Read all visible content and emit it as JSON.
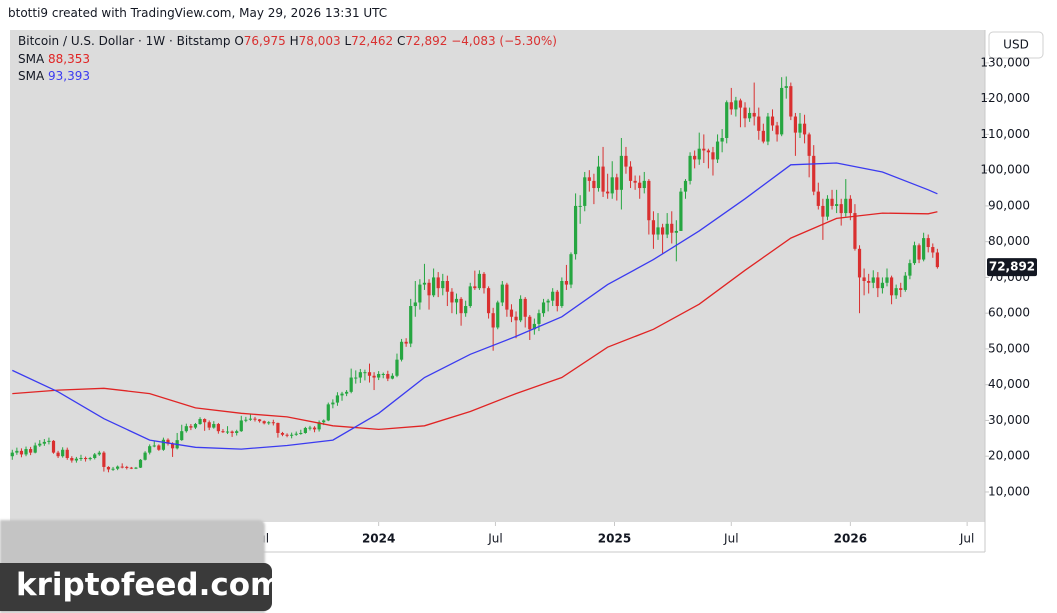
{
  "header": {
    "credit": "btotti9 created with TradingView.com, May 29, 2026 13:31 UTC"
  },
  "chart_data": {
    "type": "candlestick",
    "title": "Bitcoin / U.S. Dollar · 1W · Bitstamp",
    "quote": [
      {
        "key": "O",
        "value": "76,975"
      },
      {
        "key": "H",
        "value": "78,003"
      },
      {
        "key": "L",
        "value": "72,462"
      },
      {
        "key": "C",
        "value": "72,892"
      }
    ],
    "change": "−4,083 (−5.30%)",
    "currency": "USD",
    "price_label": "72,892",
    "up_color": "#26a641",
    "down_color": "#d93030",
    "grid": false,
    "xlim": [
      -0.5,
      212.4
    ],
    "xticks": [
      {
        "value": 54.5,
        "label": "Jul"
      },
      {
        "value": 80,
        "label": "2024"
      },
      {
        "value": 105.5,
        "label": "Jul"
      },
      {
        "value": 131.5,
        "label": "2025"
      },
      {
        "value": 157,
        "label": "Jul"
      },
      {
        "value": 183,
        "label": "2026"
      },
      {
        "value": 208.5,
        "label": "Jul"
      }
    ],
    "ylim": [
      1600,
      139200
    ],
    "yticks": [
      {
        "value": 10000,
        "label": "10,000"
      },
      {
        "value": 20000,
        "label": "20,000"
      },
      {
        "value": 30000,
        "label": "30,000"
      },
      {
        "value": 40000,
        "label": "40,000"
      },
      {
        "value": 50000,
        "label": "50,000"
      },
      {
        "value": 60000,
        "label": "60,000"
      },
      {
        "value": 70000,
        "label": "70,000"
      },
      {
        "value": 80000,
        "label": "80,000"
      },
      {
        "value": 90000,
        "label": "90,000"
      },
      {
        "value": 100000,
        "label": "100,000"
      },
      {
        "value": 110000,
        "label": "110,000"
      },
      {
        "value": 120000,
        "label": "120,000"
      },
      {
        "value": 130000,
        "label": "130,000"
      }
    ],
    "ohlc": [
      [
        20000,
        21800,
        19000,
        21000
      ],
      [
        21000,
        22400,
        20400,
        21500
      ],
      [
        21500,
        22200,
        19700,
        20500
      ],
      [
        20500,
        22700,
        20000,
        22000
      ],
      [
        22000,
        22600,
        20300,
        21000
      ],
      [
        21000,
        23800,
        20800,
        23000
      ],
      [
        23000,
        24500,
        22600,
        23500
      ],
      [
        23500,
        24800,
        22900,
        24000
      ],
      [
        24000,
        25200,
        23300,
        24300
      ],
      [
        24300,
        24500,
        20700,
        21000
      ],
      [
        21000,
        21500,
        19500,
        20000
      ],
      [
        20000,
        22500,
        19600,
        21800
      ],
      [
        21800,
        22400,
        19000,
        19500
      ],
      [
        19500,
        20000,
        18200,
        18800
      ],
      [
        18800,
        19800,
        18200,
        19300
      ],
      [
        19300,
        20400,
        18700,
        19500
      ],
      [
        19500,
        19900,
        18500,
        19200
      ],
      [
        19200,
        19800,
        18800,
        19500
      ],
      [
        19500,
        20900,
        19100,
        20500
      ],
      [
        20500,
        21500,
        20100,
        21000
      ],
      [
        21000,
        21400,
        15700,
        17000
      ],
      [
        17000,
        17200,
        15500,
        16300
      ],
      [
        16300,
        17000,
        15900,
        16500
      ],
      [
        16500,
        17400,
        16100,
        17100
      ],
      [
        17100,
        18000,
        16600,
        17000
      ],
      [
        17000,
        17300,
        16300,
        16800
      ],
      [
        16800,
        17000,
        16400,
        16600
      ],
      [
        16600,
        17000,
        16400,
        16800
      ],
      [
        16800,
        19200,
        16700,
        19000
      ],
      [
        19000,
        21400,
        18800,
        21000
      ],
      [
        21000,
        23300,
        20500,
        22800
      ],
      [
        22800,
        24200,
        22500,
        23000
      ],
      [
        23000,
        23300,
        21500,
        21800
      ],
      [
        21800,
        25200,
        21500,
        24600
      ],
      [
        24600,
        25000,
        23000,
        23500
      ],
      [
        23500,
        23900,
        19800,
        22200
      ],
      [
        22200,
        26500,
        21900,
        24500
      ],
      [
        24500,
        28800,
        24300,
        27000
      ],
      [
        27000,
        29100,
        26600,
        28400
      ],
      [
        28400,
        29000,
        27300,
        28000
      ],
      [
        28000,
        29300,
        27600,
        29000
      ],
      [
        29000,
        30900,
        28800,
        30400
      ],
      [
        30400,
        30600,
        27100,
        29500
      ],
      [
        29500,
        30000,
        27300,
        28000
      ],
      [
        28000,
        29800,
        27700,
        29000
      ],
      [
        29000,
        29300,
        26300,
        27000
      ],
      [
        27000,
        27600,
        26500,
        26800
      ],
      [
        26800,
        28400,
        26200,
        26900
      ],
      [
        26900,
        27200,
        25400,
        26500
      ],
      [
        26500,
        27400,
        25800,
        27000
      ],
      [
        27000,
        31300,
        26800,
        30000
      ],
      [
        30000,
        31000,
        29500,
        30200
      ],
      [
        30200,
        31800,
        29900,
        30500
      ],
      [
        30500,
        31000,
        29700,
        30300
      ],
      [
        30300,
        30400,
        29400,
        29800
      ],
      [
        29800,
        30000,
        28900,
        29200
      ],
      [
        29200,
        29800,
        28800,
        29500
      ],
      [
        29500,
        30200,
        28600,
        29300
      ],
      [
        29300,
        29400,
        25200,
        26500
      ],
      [
        26500,
        26800,
        25600,
        26000
      ],
      [
        26000,
        26400,
        25300,
        25900
      ],
      [
        25900,
        26600,
        25000,
        26000
      ],
      [
        26000,
        26900,
        25700,
        26300
      ],
      [
        26300,
        27400,
        26000,
        26500
      ],
      [
        26500,
        28200,
        26300,
        27900
      ],
      [
        27900,
        28500,
        27200,
        28000
      ],
      [
        28000,
        28400,
        26700,
        27500
      ],
      [
        27500,
        30000,
        26900,
        29500
      ],
      [
        29500,
        30300,
        28700,
        30000
      ],
      [
        30000,
        35000,
        29800,
        34500
      ],
      [
        34500,
        35900,
        33400,
        35000
      ],
      [
        35000,
        37900,
        34100,
        37000
      ],
      [
        37000,
        38000,
        35500,
        37500
      ],
      [
        37500,
        38500,
        36800,
        38000
      ],
      [
        38000,
        44500,
        37600,
        42000
      ],
      [
        42000,
        44000,
        40300,
        42000
      ],
      [
        42000,
        44400,
        40500,
        43500
      ],
      [
        43500,
        44200,
        41200,
        43500
      ],
      [
        43500,
        45900,
        40600,
        42500
      ],
      [
        42500,
        43500,
        38500,
        42000
      ],
      [
        42000,
        43800,
        41300,
        43000
      ],
      [
        43000,
        43400,
        41800,
        43000
      ],
      [
        43000,
        43900,
        41000,
        41700
      ],
      [
        41700,
        43200,
        41500,
        42500
      ],
      [
        42500,
        48700,
        42100,
        47000
      ],
      [
        47000,
        52800,
        46500,
        52000
      ],
      [
        52000,
        53000,
        50600,
        51500
      ],
      [
        51500,
        64000,
        50500,
        62000
      ],
      [
        62000,
        69000,
        59000,
        63000
      ],
      [
        63000,
        69500,
        61000,
        68000
      ],
      [
        68000,
        73800,
        66500,
        68500
      ],
      [
        68500,
        69500,
        61000,
        65000
      ],
      [
        65000,
        72500,
        64500,
        70000
      ],
      [
        70000,
        71500,
        64500,
        67000
      ],
      [
        67000,
        71000,
        65000,
        69000
      ],
      [
        69000,
        70500,
        62000,
        66000
      ],
      [
        66000,
        67000,
        60000,
        63000
      ],
      [
        63000,
        65500,
        59700,
        64000
      ],
      [
        64000,
        64500,
        56500,
        60000
      ],
      [
        60000,
        63500,
        59000,
        62000
      ],
      [
        62000,
        68500,
        61500,
        67500
      ],
      [
        67500,
        71900,
        66500,
        67000
      ],
      [
        67000,
        72000,
        66500,
        71000
      ],
      [
        71000,
        71500,
        65500,
        67000
      ],
      [
        67000,
        67500,
        58500,
        60000
      ],
      [
        60000,
        61500,
        49500,
        56000
      ],
      [
        56000,
        63500,
        55500,
        63000
      ],
      [
        63000,
        69000,
        62000,
        68000
      ],
      [
        68000,
        68500,
        59000,
        61000
      ],
      [
        61000,
        62500,
        57500,
        59000
      ],
      [
        59000,
        60500,
        53000,
        58000
      ],
      [
        58000,
        65000,
        57500,
        64000
      ],
      [
        64000,
        64500,
        56000,
        59000
      ],
      [
        59000,
        59500,
        52500,
        55500
      ],
      [
        55500,
        58500,
        54000,
        57000
      ],
      [
        57000,
        61000,
        55000,
        60000
      ],
      [
        60000,
        64000,
        59000,
        63000
      ],
      [
        63000,
        64000,
        60500,
        63500
      ],
      [
        63500,
        67000,
        62000,
        66000
      ],
      [
        66000,
        66500,
        60500,
        62000
      ],
      [
        62000,
        70000,
        61500,
        69000
      ],
      [
        69000,
        73500,
        66500,
        68000
      ],
      [
        68000,
        77000,
        67000,
        76500
      ],
      [
        76500,
        93500,
        75000,
        90000
      ],
      [
        90000,
        93000,
        85000,
        90000
      ],
      [
        90000,
        99500,
        88500,
        98000
      ],
      [
        98000,
        100000,
        94000,
        97000
      ],
      [
        97000,
        99000,
        90500,
        95000
      ],
      [
        95000,
        104000,
        94000,
        101000
      ],
      [
        101000,
        106500,
        92500,
        94000
      ],
      [
        94000,
        99000,
        92000,
        93500
      ],
      [
        93500,
        102500,
        92000,
        98000
      ],
      [
        98000,
        99000,
        91500,
        94500
      ],
      [
        94500,
        109000,
        89000,
        104000
      ],
      [
        104000,
        106500,
        99000,
        101000
      ],
      [
        101000,
        102500,
        95000,
        97000
      ],
      [
        97000,
        98500,
        94500,
        96500
      ],
      [
        96500,
        98500,
        92000,
        95000
      ],
      [
        95000,
        99500,
        93500,
        97000
      ],
      [
        97000,
        97500,
        82000,
        86000
      ],
      [
        86000,
        88500,
        78000,
        82000
      ],
      [
        82000,
        88000,
        80500,
        84000
      ],
      [
        84000,
        85000,
        76500,
        82000
      ],
      [
        82000,
        88000,
        81000,
        85000
      ],
      [
        85000,
        88500,
        79500,
        82500
      ],
      [
        82500,
        86000,
        74500,
        83000
      ],
      [
        83000,
        95000,
        83000,
        94000
      ],
      [
        94000,
        97500,
        92000,
        97000
      ],
      [
        97000,
        105000,
        96000,
        104000
      ],
      [
        104000,
        105500,
        100500,
        103000
      ],
      [
        103000,
        110500,
        101500,
        106000
      ],
      [
        106000,
        110000,
        102000,
        105500
      ],
      [
        105500,
        106000,
        100500,
        105000
      ],
      [
        105000,
        106500,
        98500,
        103000
      ],
      [
        103000,
        110000,
        102000,
        108000
      ],
      [
        108000,
        111500,
        105000,
        109000
      ],
      [
        109000,
        119500,
        107500,
        119000
      ],
      [
        119000,
        123000,
        115500,
        117000
      ],
      [
        117000,
        120500,
        115000,
        119500
      ],
      [
        119500,
        120000,
        112000,
        117500
      ],
      [
        117500,
        119000,
        112000,
        114500
      ],
      [
        114500,
        117500,
        113500,
        116000
      ],
      [
        116000,
        124500,
        112500,
        115000
      ],
      [
        115000,
        117500,
        108500,
        111000
      ],
      [
        111000,
        113000,
        107500,
        108000
      ],
      [
        108000,
        116000,
        107000,
        115000
      ],
      [
        115000,
        117000,
        111000,
        112500
      ],
      [
        112500,
        113500,
        108000,
        110000
      ],
      [
        110000,
        126000,
        109500,
        123000
      ],
      [
        123000,
        126200,
        120000,
        123500
      ],
      [
        123500,
        124500,
        114000,
        115000
      ],
      [
        115000,
        116000,
        104000,
        110500
      ],
      [
        110500,
        116000,
        109000,
        113000
      ],
      [
        113000,
        115500,
        107500,
        110000
      ],
      [
        110000,
        110500,
        98000,
        104000
      ],
      [
        104000,
        107000,
        93000,
        94000
      ],
      [
        94000,
        96500,
        89000,
        90000
      ],
      [
        90000,
        92000,
        80500,
        87000
      ],
      [
        87000,
        93000,
        86000,
        92000
      ],
      [
        92000,
        94500,
        89000,
        90000
      ],
      [
        90000,
        94500,
        88000,
        90500
      ],
      [
        90500,
        92000,
        84500,
        88000
      ],
      [
        88000,
        97500,
        87000,
        92000
      ],
      [
        92000,
        93000,
        86000,
        88000
      ],
      [
        88000,
        90500,
        77500,
        78000
      ],
      [
        78000,
        79000,
        60000,
        70000
      ],
      [
        70000,
        72500,
        65000,
        69000
      ],
      [
        69000,
        71000,
        65500,
        68500
      ],
      [
        68500,
        72000,
        67000,
        70000
      ],
      [
        70000,
        71500,
        64500,
        67000
      ],
      [
        67000,
        70000,
        65500,
        68500
      ],
      [
        68500,
        72500,
        67500,
        70000
      ],
      [
        70000,
        70500,
        62500,
        65000
      ],
      [
        65000,
        68000,
        64000,
        67000
      ],
      [
        67000,
        68500,
        64500,
        66500
      ],
      [
        66500,
        71500,
        66000,
        70500
      ],
      [
        70500,
        75000,
        69500,
        74000
      ],
      [
        74000,
        80000,
        73500,
        79000
      ],
      [
        79000,
        79500,
        74000,
        75000
      ],
      [
        75000,
        82500,
        74500,
        81000
      ],
      [
        81000,
        82000,
        77000,
        78500
      ],
      [
        78500,
        79500,
        75500,
        76975
      ],
      [
        76975,
        78003,
        72462,
        72892
      ]
    ],
    "series": [
      {
        "name": "SMA",
        "color": "#e02424",
        "last_label": "88,353",
        "x": [
          0,
          10,
          20,
          30,
          40,
          50,
          60,
          70,
          80,
          90,
          100,
          110,
          120,
          130,
          140,
          150,
          160,
          170,
          180,
          190,
          200,
          202
        ],
        "values": [
          37500,
          38500,
          39000,
          37500,
          33500,
          32000,
          31000,
          28500,
          27500,
          28500,
          32500,
          37500,
          42000,
          50500,
          55500,
          62500,
          72000,
          81000,
          86500,
          88000,
          87800,
          88353
        ]
      },
      {
        "name": "SMA",
        "color": "#3b3bf0",
        "last_label": "93,393",
        "x": [
          0,
          10,
          20,
          30,
          40,
          50,
          60,
          70,
          80,
          90,
          100,
          110,
          120,
          130,
          140,
          150,
          160,
          170,
          180,
          190,
          200,
          202
        ],
        "values": [
          44000,
          38000,
          30500,
          24500,
          22500,
          22000,
          23000,
          24500,
          32000,
          42000,
          48500,
          53500,
          59000,
          68000,
          75000,
          83000,
          92000,
          101500,
          102000,
          99500,
          94500,
          93393
        ]
      }
    ]
  },
  "watermark": "kriptofeed.com"
}
